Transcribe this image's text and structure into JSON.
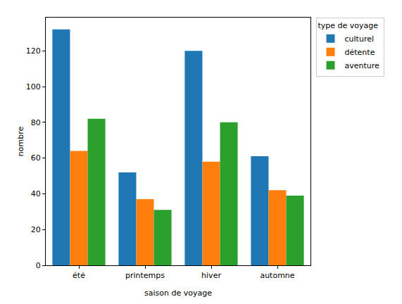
{
  "chart_data": {
    "type": "bar",
    "x_label": "saison de voyage",
    "y_label": "nombre",
    "categories": [
      "été",
      "printemps",
      "hiver",
      "automne"
    ],
    "legend_title": "type de voyage",
    "series": [
      {
        "name": "culturel",
        "color": "#1f77b4",
        "values": [
          132,
          52,
          120,
          61
        ]
      },
      {
        "name": "détente",
        "color": "#ff7f0e",
        "values": [
          64,
          37,
          58,
          42
        ]
      },
      {
        "name": "aventure",
        "color": "#2ca02c",
        "values": [
          82,
          31,
          80,
          39
        ]
      }
    ],
    "ylim": [
      0,
      138.6
    ],
    "yticks": [
      0,
      20,
      40,
      60,
      80,
      100,
      120
    ],
    "grid": false,
    "legend": "upper right"
  }
}
